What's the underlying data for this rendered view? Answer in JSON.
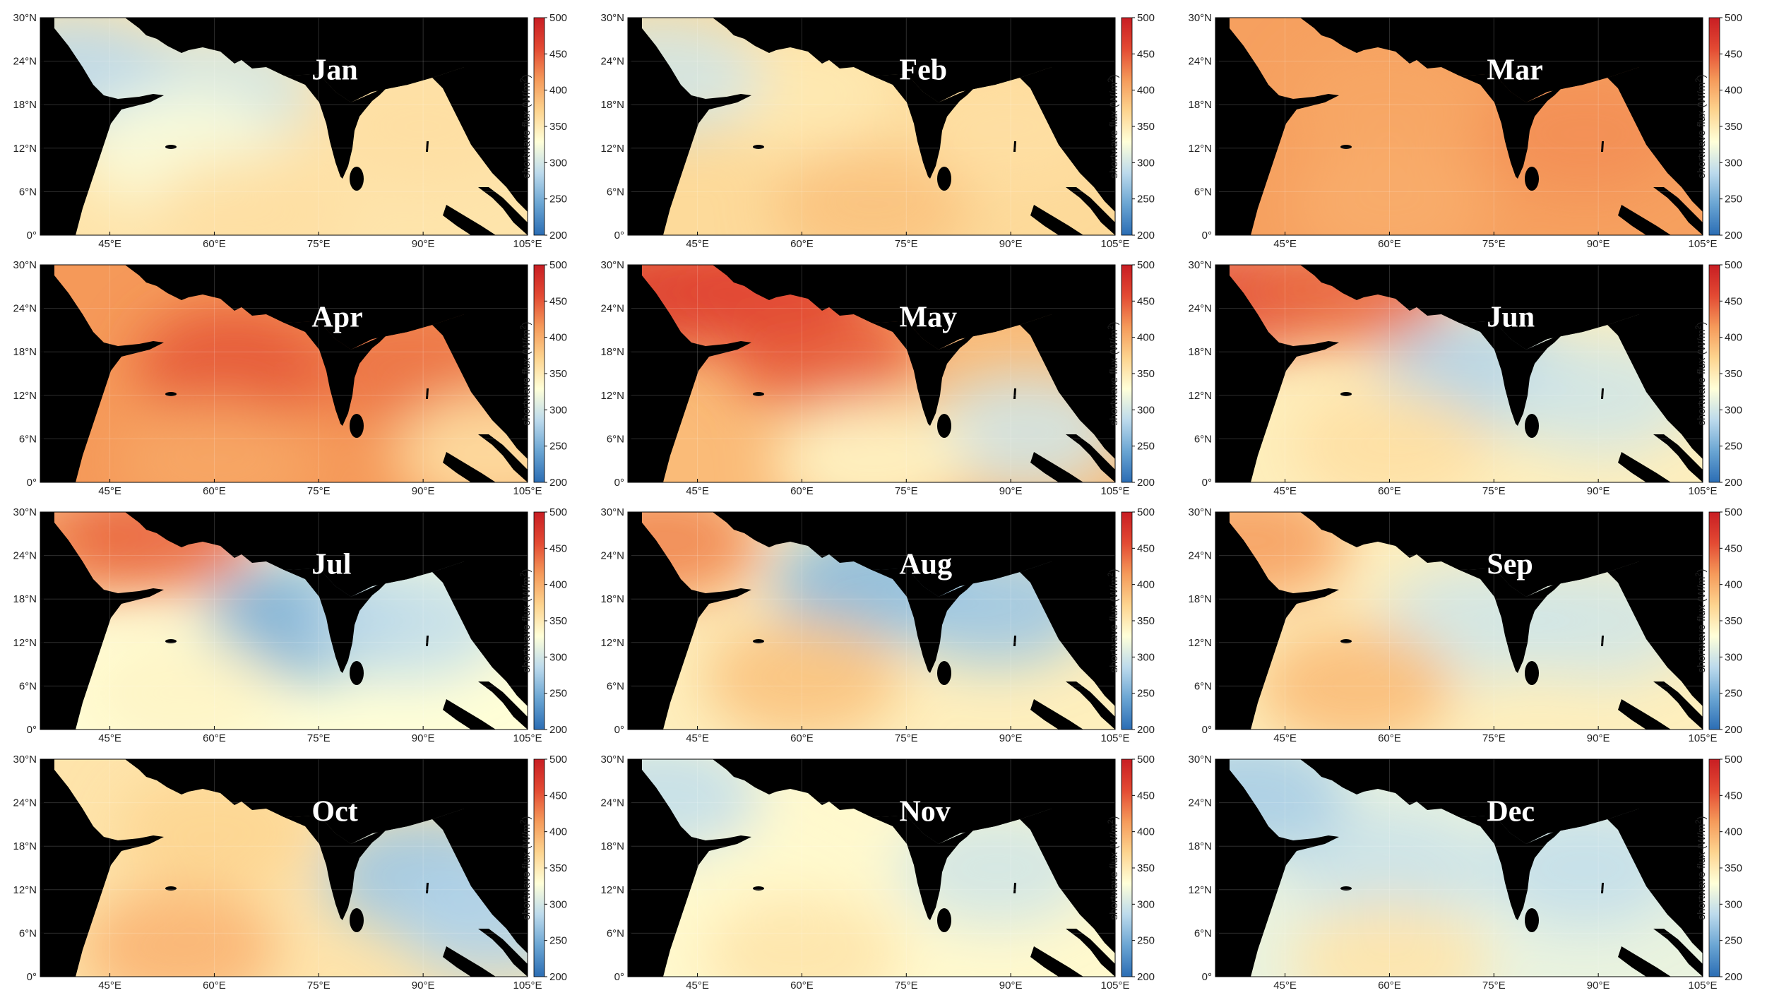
{
  "figure": {
    "colorbar": {
      "label": "shortwave flux (W/m",
      "label_sup": "2",
      "label_end": ")",
      "ticks": [
        "500",
        "450",
        "400",
        "350",
        "300",
        "250",
        "200"
      ],
      "min": 200,
      "max": 500,
      "colors": [
        "#2b6db4",
        "#6aa5d3",
        "#bcdaec",
        "#ffffd9",
        "#fdd48f",
        "#f59a5a",
        "#e34a33",
        "#c81d23"
      ]
    },
    "y_ticks": [
      "30°N",
      "24°N",
      "18°N",
      "12°N",
      "6°N",
      "0°"
    ],
    "x_ticks": [
      "45°E",
      "60°E",
      "75°E",
      "90°E",
      "105°E"
    ],
    "land_color": "#000000"
  },
  "chart_data": {
    "type": "heatmap",
    "variable": "shortwave flux (W/m2)",
    "xlim_lon": [
      35,
      105
    ],
    "ylim_lat": [
      0,
      30
    ],
    "color_range": [
      200,
      500
    ],
    "months": [
      {
        "label": "Jan",
        "bg": 355,
        "regions": [
          {
            "lon": 60,
            "lat": 20,
            "value": 300
          },
          {
            "lon": 40,
            "lat": 22,
            "value": 285
          },
          {
            "lon": 55,
            "lat": 12,
            "value": 325
          },
          {
            "lon": 90,
            "lat": 15,
            "value": 360
          },
          {
            "lon": 65,
            "lat": 3,
            "value": 360
          }
        ]
      },
      {
        "label": "Feb",
        "bg": 365,
        "regions": [
          {
            "lon": 60,
            "lat": 20,
            "value": 350
          },
          {
            "lon": 40,
            "lat": 22,
            "value": 300
          },
          {
            "lon": 70,
            "lat": 4,
            "value": 385
          },
          {
            "lon": 90,
            "lat": 15,
            "value": 360
          }
        ]
      },
      {
        "label": "Mar",
        "bg": 410,
        "regions": [
          {
            "lon": 60,
            "lat": 18,
            "value": 405
          },
          {
            "lon": 88,
            "lat": 14,
            "value": 420
          },
          {
            "lon": 60,
            "lat": 4,
            "value": 400
          }
        ]
      },
      {
        "label": "Apr",
        "bg": 415,
        "regions": [
          {
            "lon": 63,
            "lat": 16,
            "value": 450
          },
          {
            "lon": 88,
            "lat": 16,
            "value": 435
          },
          {
            "lon": 60,
            "lat": 3,
            "value": 405
          },
          {
            "lon": 100,
            "lat": 4,
            "value": 360
          }
        ]
      },
      {
        "label": "May",
        "bg": 390,
        "regions": [
          {
            "lon": 63,
            "lat": 18,
            "value": 445
          },
          {
            "lon": 40,
            "lat": 26,
            "value": 470
          },
          {
            "lon": 55,
            "lat": 27,
            "value": 460
          },
          {
            "lon": 92,
            "lat": 7,
            "value": 300
          },
          {
            "lon": 70,
            "lat": 3,
            "value": 340
          }
        ]
      },
      {
        "label": "Jun",
        "bg": 345,
        "regions": [
          {
            "lon": 73,
            "lat": 15,
            "value": 280
          },
          {
            "lon": 90,
            "lat": 12,
            "value": 300
          },
          {
            "lon": 40,
            "lat": 26,
            "value": 455
          },
          {
            "lon": 55,
            "lat": 27,
            "value": 440
          },
          {
            "lon": 60,
            "lat": 5,
            "value": 360
          }
        ]
      },
      {
        "label": "Jul",
        "bg": 330,
        "regions": [
          {
            "lon": 73,
            "lat": 15,
            "value": 250
          },
          {
            "lon": 88,
            "lat": 15,
            "value": 290
          },
          {
            "lon": 40,
            "lat": 26,
            "value": 420
          },
          {
            "lon": 52,
            "lat": 27,
            "value": 440
          },
          {
            "lon": 55,
            "lat": 5,
            "value": 340
          }
        ]
      },
      {
        "label": "Aug",
        "bg": 345,
        "regions": [
          {
            "lon": 70,
            "lat": 20,
            "value": 260
          },
          {
            "lon": 88,
            "lat": 17,
            "value": 270
          },
          {
            "lon": 60,
            "lat": 7,
            "value": 385
          },
          {
            "lon": 40,
            "lat": 26,
            "value": 425
          }
        ]
      },
      {
        "label": "Sep",
        "bg": 345,
        "regions": [
          {
            "lon": 73,
            "lat": 15,
            "value": 300
          },
          {
            "lon": 90,
            "lat": 15,
            "value": 300
          },
          {
            "lon": 55,
            "lat": 6,
            "value": 390
          },
          {
            "lon": 40,
            "lat": 26,
            "value": 410
          }
        ]
      },
      {
        "label": "Oct",
        "bg": 355,
        "regions": [
          {
            "lon": 90,
            "lat": 14,
            "value": 270
          },
          {
            "lon": 55,
            "lat": 4,
            "value": 395
          },
          {
            "lon": 60,
            "lat": 20,
            "value": 370
          },
          {
            "lon": 100,
            "lat": 8,
            "value": 280
          }
        ]
      },
      {
        "label": "Nov",
        "bg": 335,
        "regions": [
          {
            "lon": 88,
            "lat": 15,
            "value": 300
          },
          {
            "lon": 55,
            "lat": 12,
            "value": 335
          },
          {
            "lon": 60,
            "lat": 3,
            "value": 355
          },
          {
            "lon": 40,
            "lat": 25,
            "value": 290
          }
        ]
      },
      {
        "label": "Dec",
        "bg": 315,
        "regions": [
          {
            "lon": 60,
            "lat": 15,
            "value": 295
          },
          {
            "lon": 88,
            "lat": 15,
            "value": 290
          },
          {
            "lon": 60,
            "lat": 2,
            "value": 355
          },
          {
            "lon": 40,
            "lat": 25,
            "value": 275
          }
        ]
      }
    ]
  }
}
